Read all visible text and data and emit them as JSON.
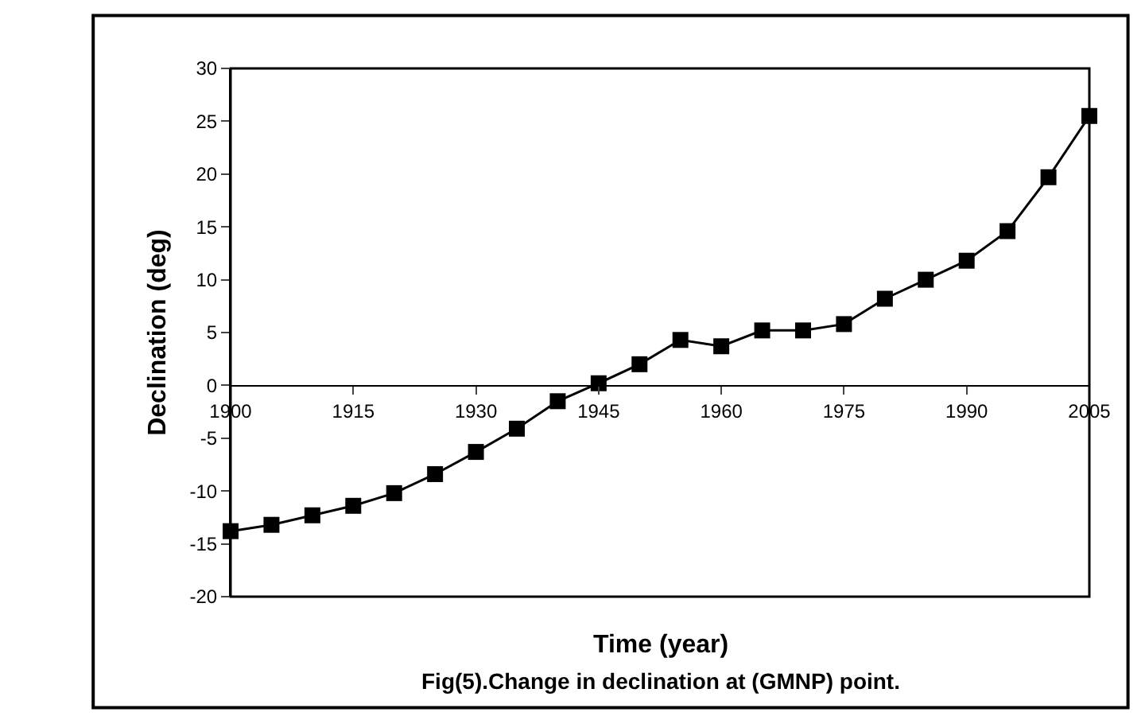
{
  "chart_data": {
    "type": "line",
    "xlabel": "Time (year)",
    "ylabel": "Declination (deg)",
    "annotations": [
      "Fig(5).Change in declination at (GMNP) point."
    ],
    "x": [
      1900,
      1905,
      1910,
      1915,
      1920,
      1925,
      1930,
      1935,
      1940,
      1945,
      1950,
      1955,
      1960,
      1965,
      1970,
      1975,
      1980,
      1985,
      1990,
      1995,
      2000,
      2005
    ],
    "series": [
      {
        "color": "#000000",
        "values": [
          -13.8,
          -13.2,
          -12.3,
          -11.4,
          -10.2,
          -8.4,
          -6.3,
          -4.1,
          -1.5,
          0.2,
          2.0,
          4.3,
          3.7,
          5.2,
          5.2,
          5.8,
          8.2,
          10.0,
          11.8,
          14.6,
          19.7,
          25.5
        ]
      }
    ],
    "xlim": [
      1900,
      2005
    ],
    "xticks": [
      1900,
      1915,
      1930,
      1945,
      1960,
      1975,
      1990,
      2005
    ],
    "ylim": [
      -20,
      30
    ],
    "yticks": [
      -20,
      -15,
      -10,
      -5,
      0,
      5,
      10,
      15,
      20,
      25,
      30
    ],
    "legend": false,
    "marker": "square",
    "line_style": "solid"
  }
}
